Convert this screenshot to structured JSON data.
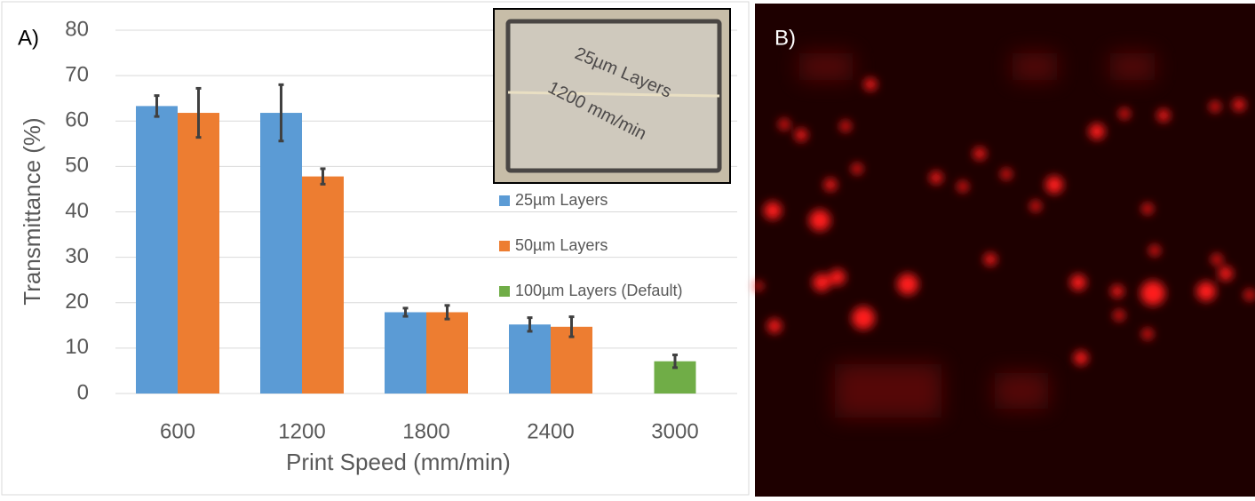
{
  "chart_data": {
    "type": "bar",
    "panel_label": "A)",
    "x_label": "Print Speed (mm/min)",
    "y_label": "Transmittance (%)",
    "categories": [
      "600",
      "1200",
      "1800",
      "2400",
      "3000"
    ],
    "series": [
      {
        "name": "25µm Layers",
        "color": "#5b9bd5",
        "values": [
          63.3,
          61.8,
          17.9,
          15.2,
          null
        ],
        "errors": [
          2.3,
          6.2,
          0.9,
          1.5,
          null
        ]
      },
      {
        "name": "50µm Layers",
        "color": "#ed7d31",
        "values": [
          61.8,
          47.8,
          17.9,
          14.7,
          null
        ],
        "errors": [
          5.4,
          1.7,
          1.5,
          2.2,
          null
        ]
      },
      {
        "name": "100µm Layers (Default)",
        "color": "#70ad47",
        "values": [
          null,
          null,
          null,
          null,
          7.1
        ],
        "errors": [
          null,
          null,
          null,
          null,
          1.4
        ]
      }
    ],
    "ylim": [
      0,
      80
    ],
    "yticks": [
      0,
      10,
      20,
      30,
      40,
      50,
      60,
      70,
      80
    ],
    "grid": true,
    "inset_labels": [
      "25µm Layers",
      "1200 mm/min"
    ]
  },
  "image_panel": {
    "label": "B)"
  }
}
